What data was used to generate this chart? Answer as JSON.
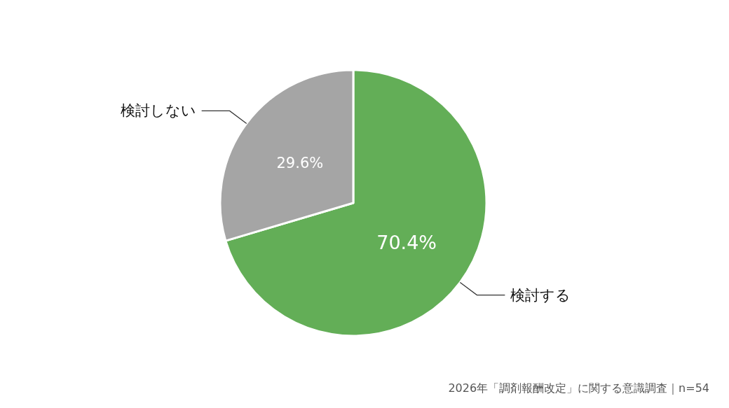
{
  "chart_data": {
    "type": "pie",
    "categories": [
      "検討する",
      "検討しない"
    ],
    "values": [
      70.4,
      29.6
    ],
    "colors": [
      "#63ae57",
      "#a5a5a5"
    ],
    "value_labels": [
      "70.4%",
      "29.6%"
    ],
    "annotations": [
      "2026年「調剤報酬改定」に関する意識調査｜n=54"
    ]
  }
}
